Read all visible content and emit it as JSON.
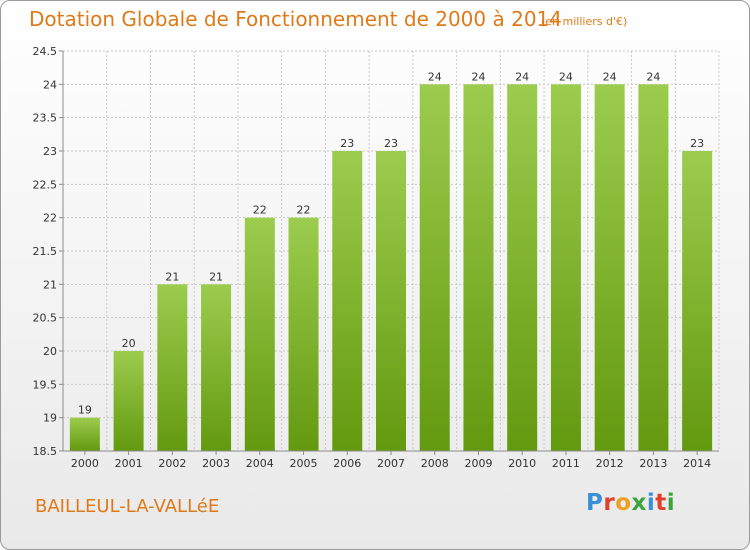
{
  "title": "Dotation Globale de Fonctionnement de 2000 à 2014",
  "unit_label": "(en milliers d'€)",
  "commune": "BAILLEUL-LA-VALLéE",
  "logo": {
    "text": "Proxiti",
    "letters": [
      "P",
      "r",
      "o",
      "x",
      "i",
      "t",
      "i"
    ],
    "colors": [
      "#3a8fd6",
      "#e0402a",
      "#f0a020",
      "#3aa33a",
      "#3a8fd6",
      "#e0402a",
      "#3aa33a"
    ]
  },
  "colors": {
    "accent": "#e07a18",
    "bar_top": "#9ccc4e",
    "bar_bottom": "#63990f",
    "axis": "#8c8c8c",
    "grid": "#c8c8c8"
  },
  "chart_data": {
    "type": "bar",
    "categories": [
      "2000",
      "2001",
      "2002",
      "2003",
      "2004",
      "2005",
      "2006",
      "2007",
      "2008",
      "2009",
      "2010",
      "2011",
      "2012",
      "2013",
      "2014"
    ],
    "values": [
      19,
      20,
      21,
      21,
      22,
      22,
      23,
      23,
      24,
      24,
      24,
      24,
      24,
      24,
      23
    ],
    "ylim": [
      18.5,
      24.5
    ],
    "yticks": [
      18.5,
      19,
      19.5,
      20,
      20.5,
      21,
      21.5,
      22,
      22.5,
      23,
      23.5,
      24,
      24.5
    ],
    "grid": true
  }
}
